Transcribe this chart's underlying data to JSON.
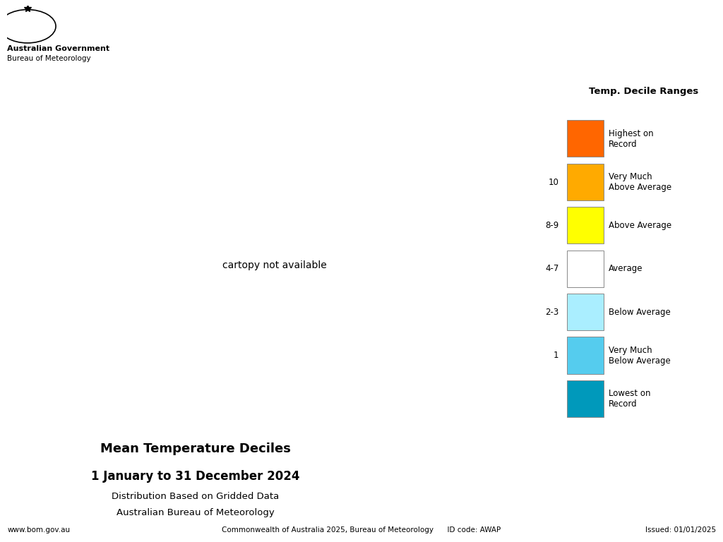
{
  "title_line1": "Mean Temperature Deciles",
  "title_line2": "1 January to 31 December 2024",
  "title_line3": "Distribution Based on Gridded Data",
  "title_line4": "Australian Bureau of Meteorology",
  "footer_left": "www.bom.gov.au",
  "footer_center": "Commonwealth of Australia 2025, Bureau of Meteorology      ID code: AWAP",
  "footer_right": "Issued: 01/01/2025",
  "gov_text1": "Australian Government",
  "gov_text2": "Bureau of Meteorology",
  "legend_title": "Temp. Decile Ranges",
  "legend_items": [
    {
      "label": "Highest on\nRecord",
      "color": "#FF6600",
      "decile": ""
    },
    {
      "label": "Very Much\nAbove Average",
      "color": "#FFAA00",
      "decile": "10"
    },
    {
      "label": "Above Average",
      "color": "#FFFF00",
      "decile": "8-9"
    },
    {
      "label": "Average",
      "color": "#FFFFFF",
      "decile": "4-7"
    },
    {
      "label": "Below Average",
      "color": "#AAEEFF",
      "decile": "2-3"
    },
    {
      "label": "Very Much\nBelow Average",
      "color": "#55CCEE",
      "decile": "1"
    },
    {
      "label": "Lowest on\nRecord",
      "color": "#0099BB",
      "decile": ""
    }
  ],
  "background_color": "#FFFFFF",
  "map_dominant_color": "#FFAA00",
  "dashed_grid_color": "#333333"
}
